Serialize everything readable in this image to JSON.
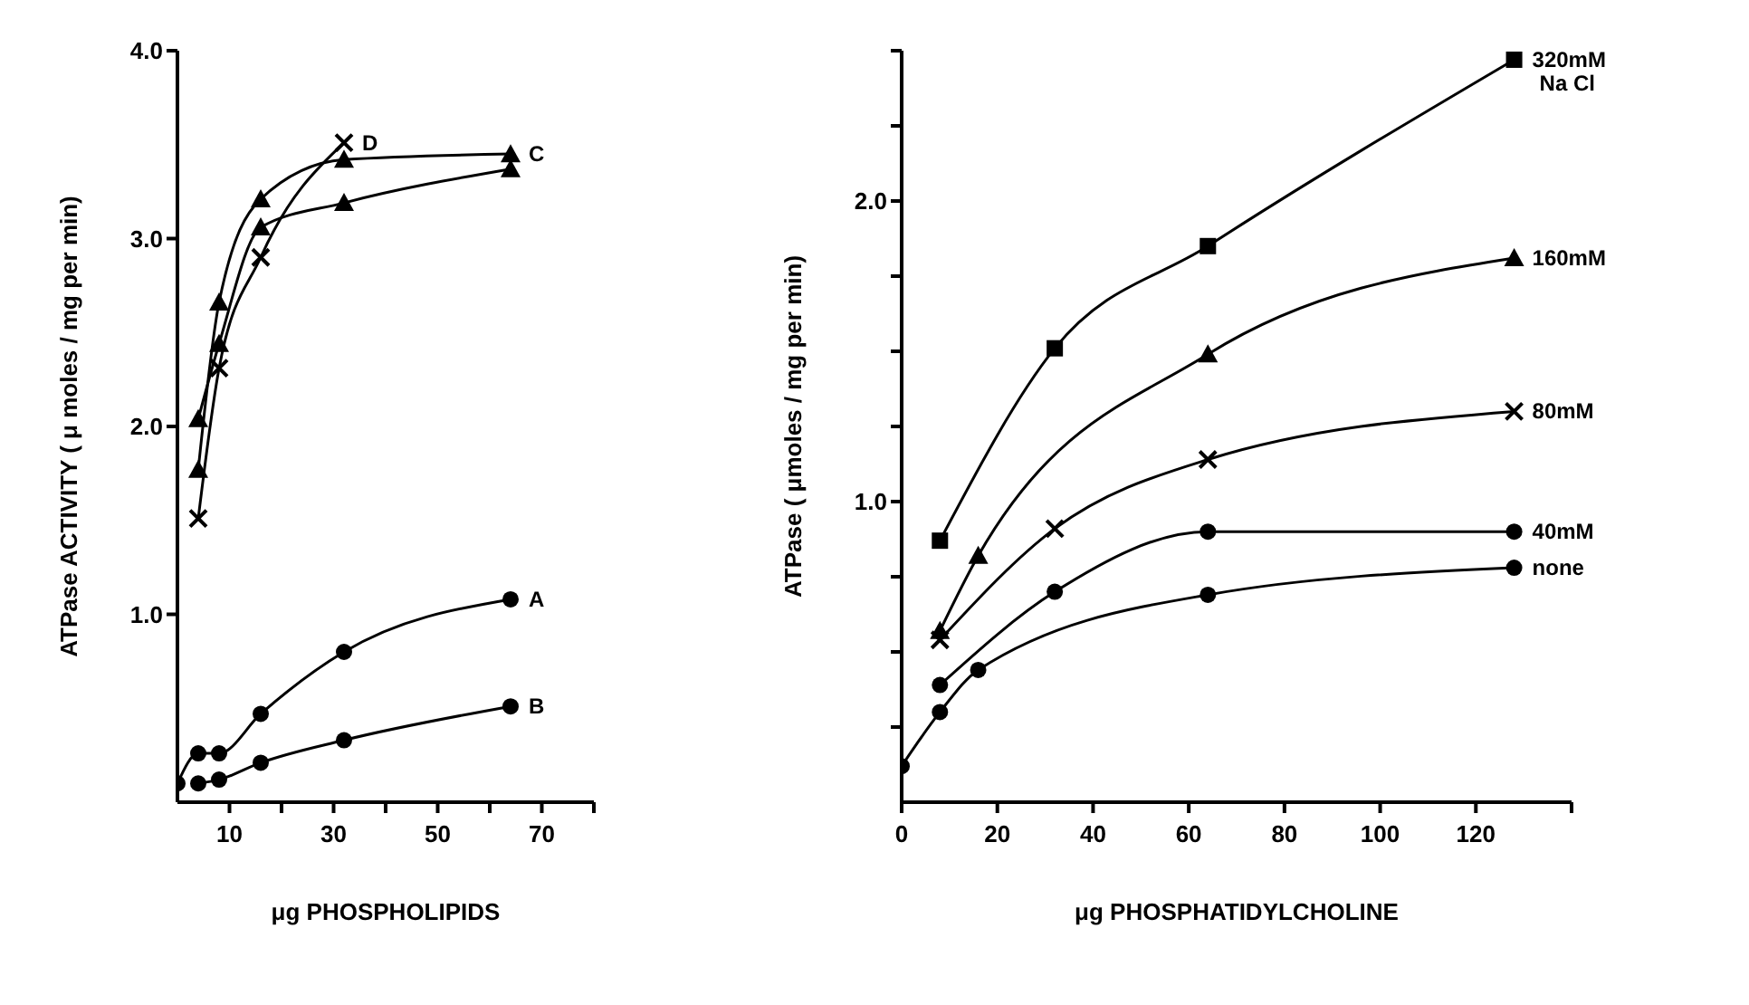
{
  "chart_data": [
    {
      "type": "line",
      "xlabel": "μg PHOSPHOLIPIDS",
      "ylabel": "ATPase ACTIVITY ( μ moles / mg per min)",
      "xlim": [
        0,
        80
      ],
      "ylim": [
        0,
        4
      ],
      "xticks": [
        {
          "value": 10,
          "label": "10"
        },
        {
          "value": 20,
          "label": null
        },
        {
          "value": 30,
          "label": "30"
        },
        {
          "value": 40,
          "label": null
        },
        {
          "value": 50,
          "label": "50"
        },
        {
          "value": 60,
          "label": null
        },
        {
          "value": 70,
          "label": "70"
        },
        {
          "value": 80,
          "label": null
        }
      ],
      "yticks": [
        {
          "value": 1,
          "label": "1.0"
        },
        {
          "value": 2,
          "label": "2.0"
        },
        {
          "value": 3,
          "label": "3.0"
        },
        {
          "value": 4,
          "label": "4.0"
        }
      ],
      "grid": false,
      "legend": false,
      "line_style": "solid",
      "series": [
        {
          "name": "A",
          "color": "#000000",
          "marker": "circle",
          "x": [
            0,
            4,
            8,
            16,
            32,
            64
          ],
          "values": [
            0.1,
            0.26,
            0.26,
            0.47,
            0.8,
            1.08
          ]
        },
        {
          "name": "B",
          "color": "#000000",
          "marker": "circle",
          "x": [
            4,
            8,
            16,
            32,
            64
          ],
          "values": [
            0.1,
            0.12,
            0.21,
            0.33,
            0.51
          ]
        },
        {
          "name": "C",
          "color": "#000000",
          "marker": "triangle",
          "x": [
            4,
            8,
            16,
            32,
            64
          ],
          "values": [
            1.77,
            2.66,
            3.21,
            3.42,
            3.45
          ]
        },
        {
          "color": "#000000",
          "marker": "triangle",
          "x": [
            4,
            8,
            16,
            32,
            64
          ],
          "values": [
            2.04,
            2.44,
            3.06,
            3.19,
            3.37
          ]
        },
        {
          "name": "D",
          "color": "#000000",
          "marker": "cross",
          "x": [
            4,
            8,
            16,
            32
          ],
          "values": [
            1.51,
            2.31,
            2.9,
            3.51
          ]
        }
      ]
    },
    {
      "type": "line",
      "xlabel": "μg PHOSPHATIDYLCHOLINE",
      "ylabel": "ATPase ( μmoles / mg per min)",
      "xlim": [
        0,
        140
      ],
      "ylim": [
        0,
        2.5
      ],
      "xticks": [
        0,
        20,
        40,
        60,
        80,
        100,
        120,
        {
          "value": 140,
          "label": null
        }
      ],
      "yticks": [
        {
          "value": 0.25,
          "label": null
        },
        {
          "value": 0.5,
          "label": null
        },
        {
          "value": 0.75,
          "label": null
        },
        {
          "value": 1,
          "label": "1.0"
        },
        {
          "value": 1.25,
          "label": null
        },
        {
          "value": 1.5,
          "label": null
        },
        {
          "value": 1.75,
          "label": null
        },
        {
          "value": 2,
          "label": "2.0"
        },
        {
          "value": 2.25,
          "label": null
        },
        {
          "value": 2.5,
          "label": null
        }
      ],
      "grid": false,
      "legend": false,
      "line_style": "solid",
      "series": [
        {
          "name": "320mM Na Cl",
          "color": "#000000",
          "marker": "square",
          "x": [
            8,
            32,
            64,
            128
          ],
          "values": [
            0.87,
            1.51,
            1.85,
            2.47
          ]
        },
        {
          "name": "160mM",
          "color": "#000000",
          "marker": "triangle",
          "x": [
            8,
            16,
            64,
            128
          ],
          "values": [
            0.57,
            0.82,
            1.49,
            1.81
          ]
        },
        {
          "name": "80mM",
          "color": "#000000",
          "marker": "cross",
          "x": [
            8,
            32,
            64,
            128
          ],
          "values": [
            0.54,
            0.91,
            1.14,
            1.3
          ]
        },
        {
          "name": "40mM",
          "color": "#000000",
          "marker": "circle",
          "x": [
            8,
            32,
            64,
            128
          ],
          "values": [
            0.39,
            0.7,
            0.9,
            0.9
          ]
        },
        {
          "name": "none",
          "color": "#000000",
          "marker": "circle",
          "x": [
            0,
            8,
            16,
            64,
            128
          ],
          "values": [
            0.12,
            0.3,
            0.44,
            0.69,
            0.78
          ]
        }
      ]
    }
  ]
}
